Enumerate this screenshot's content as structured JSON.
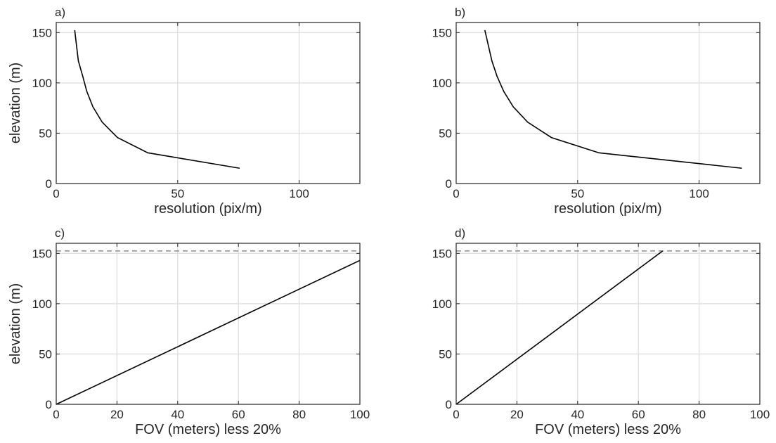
{
  "chart_data": [
    {
      "panel_label": "a)",
      "type": "line",
      "xlabel": "resolution (pix/m)",
      "ylabel": "elevation (m)",
      "xlim": [
        0,
        125
      ],
      "ylim": [
        0,
        160
      ],
      "xticks": [
        0,
        50,
        100
      ],
      "yticks": [
        0,
        50,
        100,
        150
      ],
      "grid": true,
      "series": [
        {
          "x": [
            7.6,
            9.1,
            10.9,
            12.6,
            15.1,
            18.9,
            25.2,
            37.7,
            75.5
          ],
          "y": [
            152.4,
            121.9,
            106.7,
            91.4,
            76.2,
            61.0,
            45.7,
            30.5,
            15.2
          ]
        }
      ],
      "ref_line": null
    },
    {
      "panel_label": "b)",
      "type": "line",
      "xlabel": "resolution (pix/m)",
      "ylabel": "",
      "xlim": [
        0,
        125
      ],
      "ylim": [
        0,
        160
      ],
      "xticks": [
        0,
        50,
        100
      ],
      "yticks": [
        0,
        50,
        100,
        150
      ],
      "grid": true,
      "series": [
        {
          "x": [
            11.8,
            14.7,
            16.8,
            19.6,
            23.5,
            29.4,
            39.2,
            58.8,
            117.6
          ],
          "y": [
            152.4,
            121.9,
            106.7,
            91.4,
            76.2,
            61.0,
            45.7,
            30.5,
            15.2
          ]
        }
      ],
      "ref_line": null
    },
    {
      "panel_label": "c)",
      "type": "line",
      "xlabel": "FOV (meters) less 20%",
      "ylabel": "elevation (m)",
      "xlim": [
        0,
        100
      ],
      "ylim": [
        0,
        160
      ],
      "xticks": [
        0,
        20,
        40,
        60,
        80,
        100
      ],
      "yticks": [
        0,
        50,
        100,
        150
      ],
      "grid": true,
      "series": [
        {
          "x": [
            0,
            100
          ],
          "y": [
            0,
            143
          ]
        }
      ],
      "ref_line": {
        "y": 152.4,
        "style": "dashed",
        "color": "#8c8c8c"
      }
    },
    {
      "panel_label": "d)",
      "type": "line",
      "xlabel": "FOV (meters) less 20%",
      "ylabel": "",
      "xlim": [
        0,
        100
      ],
      "ylim": [
        0,
        160
      ],
      "xticks": [
        0,
        20,
        40,
        60,
        80,
        100
      ],
      "yticks": [
        0,
        50,
        100,
        150
      ],
      "grid": true,
      "series": [
        {
          "x": [
            0,
            68
          ],
          "y": [
            0,
            152.4
          ]
        }
      ],
      "ref_line": {
        "y": 152.4,
        "style": "dashed",
        "color": "#8c8c8c"
      }
    }
  ]
}
